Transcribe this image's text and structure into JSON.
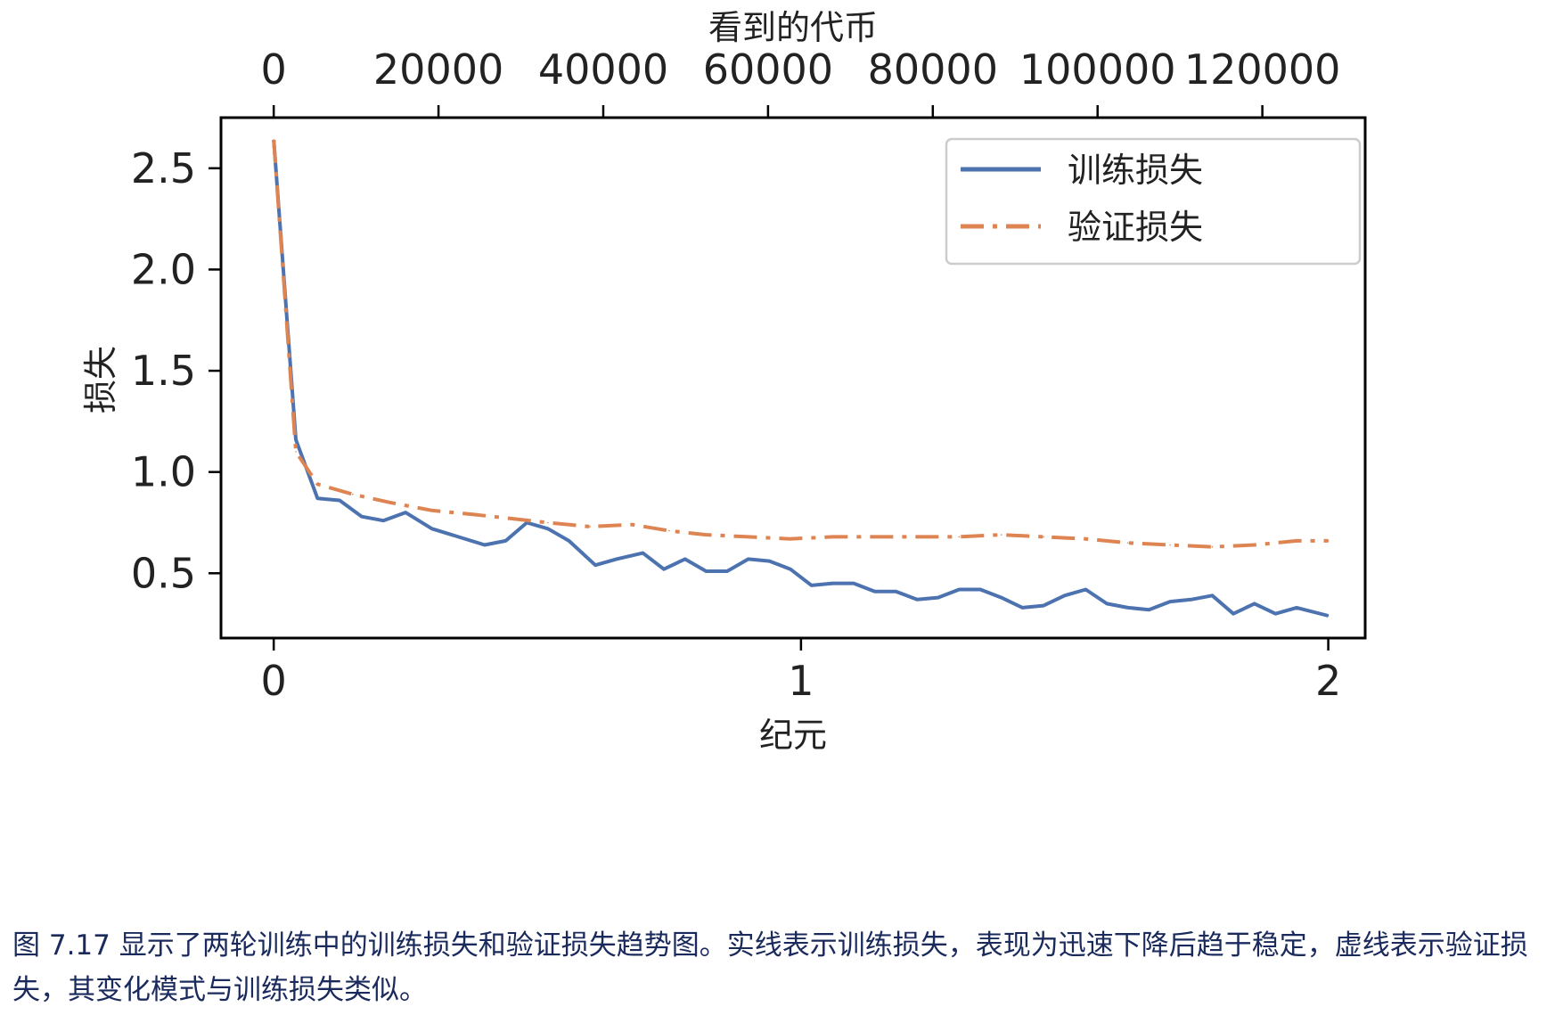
{
  "chart_data": {
    "type": "line",
    "xlabel": "纪元",
    "ylabel": "损失",
    "x2label": "看到的代币",
    "xlim": [
      -0.1,
      2.07
    ],
    "ylim": [
      0.18,
      2.75
    ],
    "x2lim": [
      -0.1,
      2.07
    ],
    "x_ticks": [
      0,
      1,
      2
    ],
    "y_ticks": [
      0.5,
      1.0,
      1.5,
      2.0,
      2.5
    ],
    "y_tick_labels": [
      "0.5",
      "1.0",
      "1.5",
      "2.0",
      "2.5"
    ],
    "x2_ticks": [
      0,
      20000,
      40000,
      60000,
      80000,
      100000,
      120000
    ],
    "x2_tick_positions": [
      0,
      0.3125,
      0.625,
      0.9375,
      1.25,
      1.5625,
      1.875
    ],
    "grid": false,
    "legend_position": "top-right",
    "series": [
      {
        "name": "训练损失",
        "color": "#4c72b0",
        "style": "solid",
        "x": [
          0,
          0.042,
          0.083,
          0.125,
          0.167,
          0.208,
          0.25,
          0.3,
          0.35,
          0.4,
          0.44,
          0.48,
          0.52,
          0.56,
          0.61,
          0.65,
          0.7,
          0.74,
          0.78,
          0.82,
          0.86,
          0.9,
          0.94,
          0.98,
          1.02,
          1.06,
          1.1,
          1.14,
          1.18,
          1.22,
          1.26,
          1.3,
          1.34,
          1.38,
          1.42,
          1.46,
          1.5,
          1.54,
          1.58,
          1.62,
          1.66,
          1.7,
          1.74,
          1.78,
          1.82,
          1.86,
          1.9,
          1.94,
          2.0
        ],
        "y": [
          2.64,
          1.16,
          0.87,
          0.86,
          0.78,
          0.76,
          0.8,
          0.72,
          0.68,
          0.64,
          0.66,
          0.75,
          0.72,
          0.66,
          0.54,
          0.57,
          0.6,
          0.52,
          0.57,
          0.51,
          0.51,
          0.57,
          0.56,
          0.52,
          0.44,
          0.45,
          0.45,
          0.41,
          0.41,
          0.37,
          0.38,
          0.42,
          0.42,
          0.38,
          0.33,
          0.34,
          0.39,
          0.42,
          0.35,
          0.33,
          0.32,
          0.36,
          0.37,
          0.39,
          0.3,
          0.35,
          0.3,
          0.33,
          0.29
        ]
      },
      {
        "name": "验证损失",
        "color": "#dd8452",
        "style": "dashdot",
        "x": [
          0,
          0.042,
          0.083,
          0.15,
          0.22,
          0.3,
          0.38,
          0.45,
          0.52,
          0.6,
          0.68,
          0.75,
          0.82,
          0.9,
          0.98,
          1.06,
          1.14,
          1.22,
          1.3,
          1.38,
          1.46,
          1.54,
          1.62,
          1.7,
          1.78,
          1.86,
          1.94,
          2.0
        ],
        "y": [
          2.64,
          1.1,
          0.94,
          0.89,
          0.85,
          0.81,
          0.79,
          0.77,
          0.75,
          0.73,
          0.74,
          0.71,
          0.69,
          0.68,
          0.67,
          0.68,
          0.68,
          0.68,
          0.68,
          0.69,
          0.68,
          0.67,
          0.65,
          0.64,
          0.63,
          0.64,
          0.66,
          0.66
        ]
      }
    ]
  },
  "caption": "图 7.17 显示了两轮训练中的训练损失和验证损失趋势图。实线表示训练损失，表现为迅速下降后趋于稳定，虚线表示验证损失，其变化模式与训练损失类似。"
}
